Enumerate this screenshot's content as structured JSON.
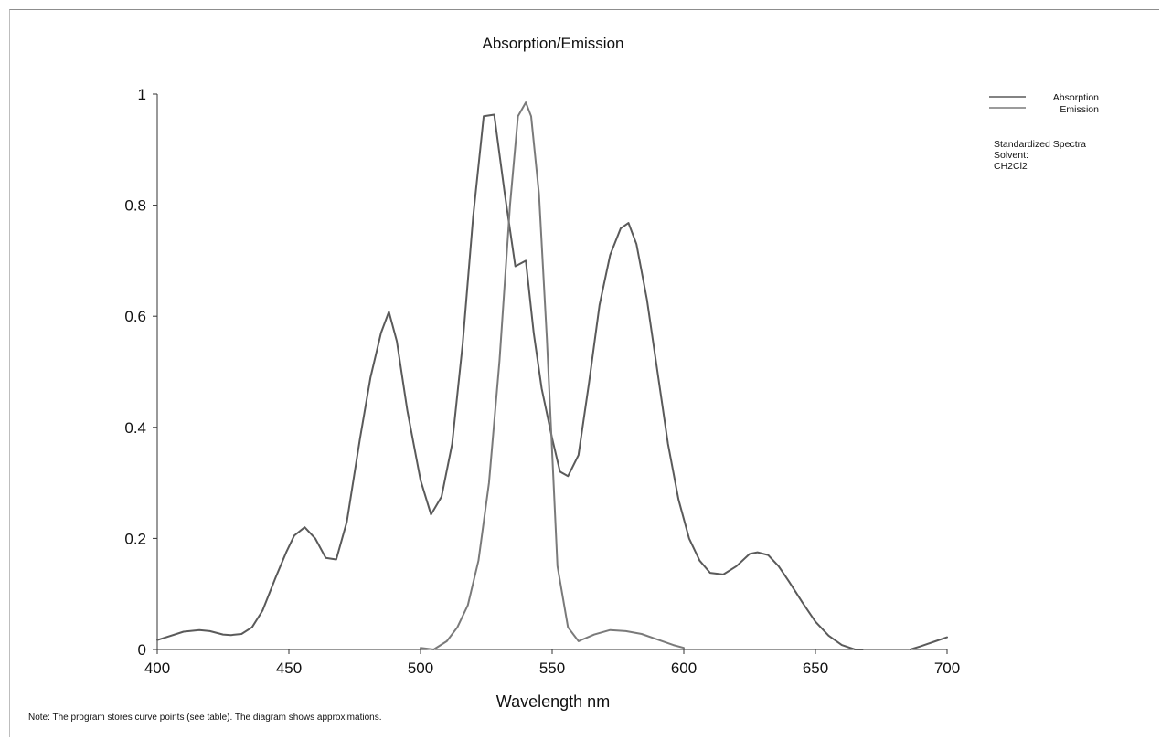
{
  "chart_data": {
    "type": "line",
    "title": "Absorption/Emission",
    "xlabel": "Wavelength nm",
    "ylabel": "",
    "xlim": [
      400,
      700
    ],
    "ylim": [
      0,
      1
    ],
    "xticks": [
      400,
      450,
      500,
      550,
      600,
      650,
      700
    ],
    "yticks": [
      0,
      0.2,
      0.4,
      0.6,
      0.8,
      1
    ],
    "ytick_labels": [
      "0",
      "0.2",
      "0.4",
      "0.6",
      "0.8",
      "1"
    ],
    "grid": false,
    "legend_position": "top-right",
    "series": [
      {
        "name": "Absorption",
        "color": "#5a5a5a",
        "x": [
          400,
          410,
          416,
          420,
          425,
          428,
          432,
          436,
          440,
          445,
          449,
          452,
          456,
          460,
          464,
          468,
          472,
          477,
          481,
          485,
          488,
          491,
          495,
          500,
          504,
          508,
          512,
          516,
          520,
          524,
          528,
          532,
          536,
          540,
          543,
          546,
          550,
          553,
          556,
          560,
          564,
          568,
          572,
          576,
          579,
          582,
          586,
          590,
          594,
          598,
          602,
          606,
          610,
          615,
          620,
          625,
          628,
          632,
          636,
          640,
          645,
          650,
          655,
          660,
          665,
          668
        ],
        "y": [
          0.017,
          0.032,
          0.035,
          0.033,
          0.027,
          0.026,
          0.028,
          0.04,
          0.07,
          0.13,
          0.175,
          0.205,
          0.22,
          0.2,
          0.165,
          0.162,
          0.23,
          0.38,
          0.49,
          0.57,
          0.608,
          0.555,
          0.43,
          0.305,
          0.243,
          0.275,
          0.37,
          0.55,
          0.78,
          0.96,
          0.963,
          0.82,
          0.69,
          0.7,
          0.57,
          0.47,
          0.38,
          0.32,
          0.312,
          0.35,
          0.48,
          0.62,
          0.71,
          0.758,
          0.768,
          0.73,
          0.63,
          0.5,
          0.37,
          0.27,
          0.2,
          0.16,
          0.138,
          0.135,
          0.15,
          0.172,
          0.175,
          0.17,
          0.15,
          0.122,
          0.085,
          0.05,
          0.025,
          0.008,
          0.0,
          0.0
        ]
      },
      {
        "name": "Emission",
        "color": "#7a7a7a",
        "x": [
          500,
          505,
          510,
          514,
          518,
          522,
          526,
          530,
          534,
          537,
          540,
          542,
          545,
          548,
          552,
          556,
          560,
          566,
          572,
          578,
          584,
          590,
          596,
          600
        ],
        "y": [
          0.003,
          0.0,
          0.015,
          0.04,
          0.08,
          0.16,
          0.3,
          0.52,
          0.8,
          0.96,
          0.985,
          0.96,
          0.82,
          0.56,
          0.15,
          0.04,
          0.015,
          0.027,
          0.035,
          0.033,
          0.028,
          0.018,
          0.008,
          0.003
        ]
      },
      {
        "name": "",
        "color": "#5a5a5a",
        "x": [
          686,
          690,
          695,
          700
        ],
        "y": [
          0.0,
          0.006,
          0.014,
          0.022
        ]
      }
    ]
  },
  "legend": {
    "absorption_label": "Absorption",
    "emission_label": "Emission"
  },
  "info": {
    "line1": "Standardized Spectra",
    "line2": "Solvent:",
    "line3": "CH2Cl2"
  },
  "note": "Note: The program stores curve points (see table). The diagram shows approximations."
}
